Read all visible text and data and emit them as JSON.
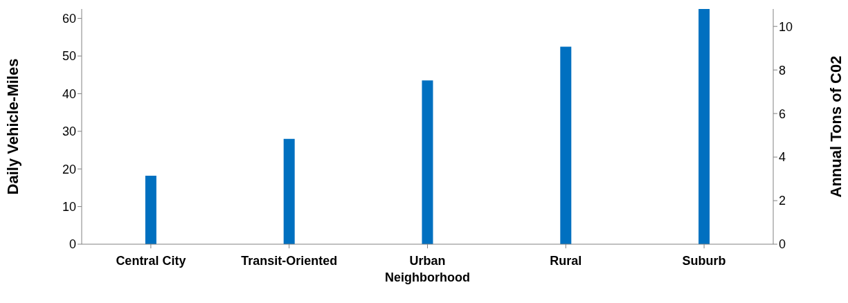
{
  "chart_data": {
    "type": "bar",
    "ylabel": "Daily Vehicle-Miles",
    "y2label": "Annual Tons of C02",
    "categories": [
      "Central City",
      "Transit-Oriented",
      "Urban Neighborhood",
      "Rural",
      "Suburb"
    ],
    "values": [
      18.2,
      28,
      43.5,
      52.5,
      62.5
    ],
    "color": "#0070c0",
    "ylim": [
      0,
      62.5
    ],
    "yticks": [
      0,
      10,
      20,
      30,
      40,
      50,
      60
    ],
    "y2lim": [
      0,
      10.8
    ],
    "y2ticks": [
      0,
      2,
      4,
      6,
      8,
      10
    ],
    "grid": false,
    "legend": false
  }
}
